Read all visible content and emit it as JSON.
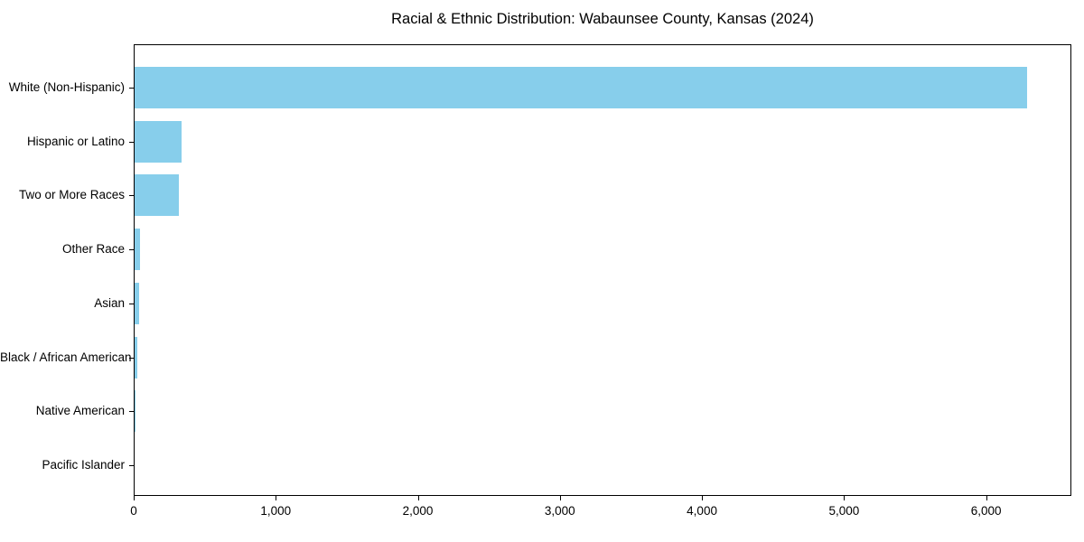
{
  "title": "Racial & Ethnic Distribution: Wabaunsee County, Kansas (2024)",
  "chart_data": {
    "type": "bar",
    "orientation": "horizontal",
    "title": "Racial & Ethnic Distribution: Wabaunsee County, Kansas (2024)",
    "categories": [
      "White (Non-Hispanic)",
      "Hispanic or Latino",
      "Two or More Races",
      "Other Race",
      "Asian",
      "Black / African American",
      "Native American",
      "Pacific Islander"
    ],
    "values": [
      6287,
      335,
      316,
      42,
      36,
      23,
      8,
      2
    ],
    "xlabel": "",
    "ylabel": "",
    "xlim": [
      0,
      6600
    ],
    "xticks": [
      0,
      1000,
      2000,
      3000,
      4000,
      5000,
      6000
    ],
    "xtick_labels": [
      "0",
      "1,000",
      "2,000",
      "3,000",
      "4,000",
      "5,000",
      "6,000"
    ],
    "bar_color": "#87CEEB",
    "axis_color": "#000000",
    "background_color": "#ffffff",
    "grid": false,
    "legend": null
  }
}
